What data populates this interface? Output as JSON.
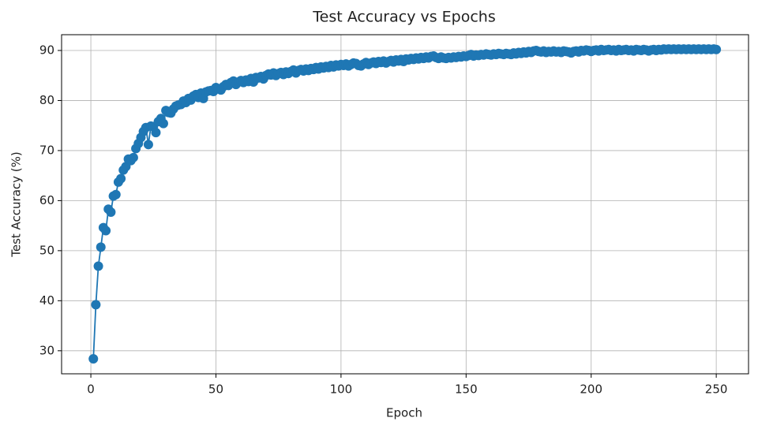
{
  "chart_data": {
    "type": "line",
    "title": "Test Accuracy vs Epochs",
    "x_label": "Epoch",
    "y_label": "Test Accuracy (%)",
    "color": "#1f77b4",
    "grid": true,
    "xlim": [
      -11.7,
      262.9
    ],
    "xticks": [
      0,
      50,
      100,
      150,
      200,
      250
    ],
    "ylim": [
      25.4,
      93.15
    ],
    "yticks": [
      30,
      40,
      50,
      60,
      70,
      80,
      90
    ],
    "x": [
      1,
      2,
      3,
      4,
      5,
      6,
      7,
      8,
      9,
      10,
      11,
      12,
      13,
      14,
      15,
      16,
      17,
      18,
      19,
      20,
      21,
      22,
      23,
      24,
      25,
      26,
      27,
      28,
      29,
      30,
      31,
      32,
      33,
      34,
      35,
      36,
      37,
      38,
      39,
      40,
      41,
      42,
      43,
      44,
      45,
      46,
      47,
      48,
      49,
      50,
      51,
      52,
      53,
      54,
      55,
      56,
      57,
      58,
      59,
      60,
      61,
      62,
      63,
      64,
      65,
      66,
      67,
      68,
      69,
      70,
      71,
      72,
      73,
      74,
      75,
      76,
      77,
      78,
      79,
      80,
      81,
      82,
      83,
      84,
      85,
      86,
      87,
      88,
      89,
      90,
      91,
      92,
      93,
      94,
      95,
      96,
      97,
      98,
      99,
      100,
      101,
      102,
      103,
      104,
      105,
      106,
      107,
      108,
      109,
      110,
      111,
      112,
      113,
      114,
      115,
      116,
      117,
      118,
      119,
      120,
      121,
      122,
      123,
      124,
      125,
      126,
      127,
      128,
      129,
      130,
      131,
      132,
      133,
      134,
      135,
      136,
      137,
      138,
      139,
      140,
      141,
      142,
      143,
      144,
      145,
      146,
      147,
      148,
      149,
      150,
      151,
      152,
      153,
      154,
      155,
      156,
      157,
      158,
      159,
      160,
      161,
      162,
      163,
      164,
      165,
      166,
      167,
      168,
      169,
      170,
      171,
      172,
      173,
      174,
      175,
      176,
      177,
      178,
      179,
      180,
      181,
      182,
      183,
      184,
      185,
      186,
      187,
      188,
      189,
      190,
      191,
      192,
      193,
      194,
      195,
      196,
      197,
      198,
      199,
      200,
      201,
      202,
      203,
      204,
      205,
      206,
      207,
      208,
      209,
      210,
      211,
      212,
      213,
      214,
      215,
      216,
      217,
      218,
      219,
      220,
      221,
      222,
      223,
      224,
      225,
      226,
      227,
      228,
      229,
      230,
      231,
      232,
      233,
      234,
      235,
      236,
      237,
      238,
      239,
      240,
      241,
      242,
      243,
      244,
      245,
      246,
      247,
      248,
      249,
      250
    ],
    "values": [
      28.4,
      39.2,
      46.9,
      50.7,
      54.6,
      54.0,
      58.3,
      57.7,
      60.9,
      61.2,
      63.7,
      64.4,
      66.1,
      66.8,
      68.3,
      68.0,
      68.6,
      70.4,
      71.4,
      72.6,
      73.8,
      74.6,
      71.2,
      74.9,
      74.8,
      73.6,
      75.8,
      76.4,
      75.4,
      78.0,
      77.6,
      77.5,
      78.3,
      78.9,
      79.1,
      79.2,
      79.9,
      79.6,
      80.4,
      80.1,
      80.9,
      81.2,
      80.6,
      81.5,
      80.4,
      81.7,
      81.9,
      82.0,
      81.8,
      82.6,
      82.3,
      82.1,
      82.8,
      83.2,
      83.0,
      83.6,
      83.9,
      83.2,
      83.7,
      84.0,
      83.6,
      84.1,
      83.8,
      84.4,
      83.7,
      84.6,
      84.5,
      84.8,
      84.3,
      85.0,
      85.3,
      85.1,
      85.5,
      85.0,
      85.4,
      85.6,
      85.2,
      85.7,
      85.4,
      85.8,
      86.1,
      85.5,
      86.0,
      86.2,
      85.9,
      86.3,
      86.0,
      86.4,
      86.2,
      86.6,
      86.3,
      86.7,
      86.5,
      86.8,
      86.6,
      87.0,
      86.7,
      87.1,
      86.9,
      87.2,
      87.0,
      87.3,
      86.9,
      87.2,
      87.5,
      87.4,
      87.0,
      86.9,
      87.3,
      87.6,
      87.2,
      87.5,
      87.7,
      87.4,
      87.8,
      87.6,
      87.9,
      87.5,
      87.8,
      88.0,
      87.7,
      88.1,
      87.9,
      88.2,
      87.8,
      88.3,
      88.1,
      88.4,
      88.2,
      88.5,
      88.3,
      88.6,
      88.4,
      88.7,
      88.5,
      88.8,
      88.9,
      88.6,
      88.4,
      88.7,
      88.5,
      88.4,
      88.6,
      88.5,
      88.7,
      88.6,
      88.8,
      88.7,
      88.9,
      88.8,
      89.0,
      89.2,
      88.9,
      89.1,
      89.0,
      89.2,
      89.1,
      89.3,
      89.2,
      89.1,
      89.3,
      89.2,
      89.4,
      89.3,
      89.2,
      89.4,
      89.3,
      89.2,
      89.5,
      89.3,
      89.6,
      89.4,
      89.7,
      89.5,
      89.8,
      89.6,
      89.9,
      90.0,
      89.8,
      89.7,
      89.9,
      89.6,
      89.8,
      89.7,
      89.9,
      89.7,
      89.8,
      89.6,
      89.9,
      89.8,
      89.7,
      89.5,
      89.8,
      89.9,
      89.7,
      90.0,
      89.9,
      90.1,
      90.0,
      89.8,
      90.0,
      90.1,
      89.9,
      90.2,
      90.0,
      90.1,
      90.2,
      90.0,
      90.1,
      89.9,
      90.2,
      90.0,
      90.1,
      90.2,
      90.0,
      90.1,
      89.9,
      90.2,
      90.1,
      90.0,
      90.2,
      90.1,
      89.9,
      90.1,
      90.2,
      90.0,
      90.2,
      90.1,
      90.3,
      90.2,
      90.3,
      90.2,
      90.3,
      90.2,
      90.3,
      90.2,
      90.3,
      90.2,
      90.3,
      90.2,
      90.3,
      90.2,
      90.3,
      90.2,
      90.3,
      90.2,
      90.3,
      90.2,
      90.3,
      90.2
    ]
  }
}
